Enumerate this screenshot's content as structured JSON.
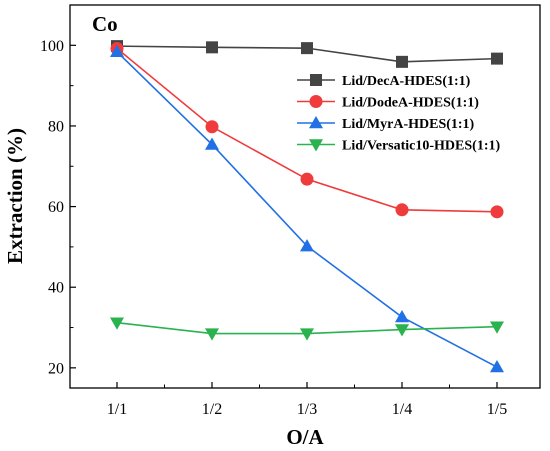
{
  "chart_data": {
    "type": "line",
    "annotation": "Co",
    "xlabel": "O/A",
    "ylabel": "Extraction (%)",
    "categories": [
      "1/1",
      "1/2",
      "1/3",
      "1/4",
      "1/5"
    ],
    "ylim": [
      15,
      110
    ],
    "yticks": [
      20,
      40,
      60,
      80,
      100
    ],
    "grid": false,
    "legend_position": "upper-right",
    "series": [
      {
        "name": "Lid/DecA-HDES(1:1)",
        "color": "#444444",
        "marker": "square",
        "values": [
          99.8,
          99.5,
          99.3,
          95.9,
          96.7
        ]
      },
      {
        "name": "Lid/DodeA-HDES(1:1)",
        "color": "#ef3b3b",
        "marker": "circle",
        "values": [
          99.2,
          79.8,
          66.8,
          59.2,
          58.7
        ]
      },
      {
        "name": "Lid/MyrA-HDES(1:1)",
        "color": "#2170e5",
        "marker": "triangle-up",
        "values": [
          98.4,
          75.4,
          50.2,
          32.6,
          20.2
        ]
      },
      {
        "name": "Lid/Versatic10-HDES(1:1)",
        "color": "#2ab24e",
        "marker": "triangle-down",
        "values": [
          31.2,
          28.5,
          28.5,
          29.5,
          30.2
        ]
      }
    ]
  }
}
